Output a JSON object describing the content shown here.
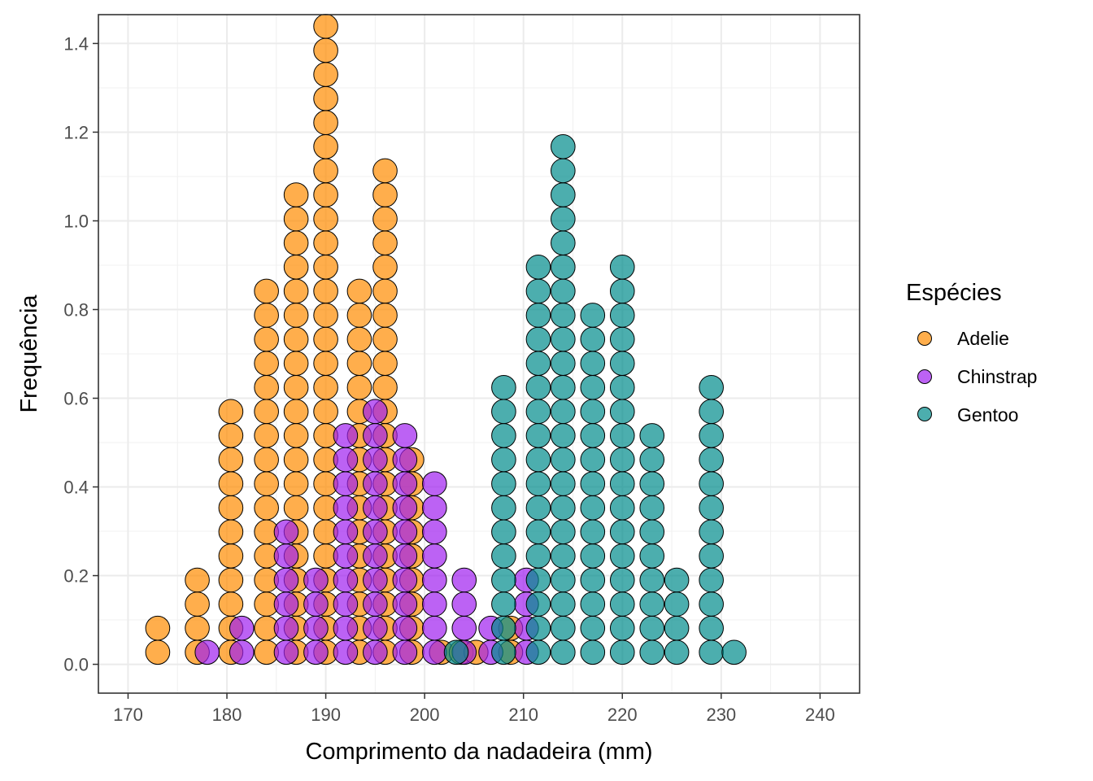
{
  "chart_data": {
    "type": "dotplot",
    "title": "",
    "xlabel": "Comprimento da nadadeira (mm)",
    "ylabel": "Frequência",
    "xlim": [
      167,
      244
    ],
    "ylim": [
      -0.065,
      1.465
    ],
    "x_ticks": [
      170,
      180,
      190,
      200,
      210,
      220,
      230,
      240
    ],
    "x_tick_labels": [
      "170",
      "180",
      "190",
      "200",
      "210",
      "220",
      "230",
      "240"
    ],
    "y_ticks": [
      0.0,
      0.2,
      0.4,
      0.6,
      0.8,
      1.0,
      1.2,
      1.4
    ],
    "y_tick_labels": [
      "0.0",
      "0.2",
      "0.4",
      "0.6",
      "0.8",
      "1.0",
      "1.2",
      "1.4"
    ],
    "grid": true,
    "legend": {
      "title": "Espécies",
      "position": "right"
    },
    "dot_step": 0.05429,
    "series": [
      {
        "name": "Adelie",
        "color": "#FF8C00",
        "stacks": [
          [
            173,
            2
          ],
          [
            177,
            4
          ],
          [
            180.4,
            11
          ],
          [
            184,
            16
          ],
          [
            187,
            20
          ],
          [
            190,
            27
          ],
          [
            193.4,
            16
          ],
          [
            196,
            21
          ],
          [
            198.7,
            9
          ],
          [
            201.7,
            1
          ],
          [
            203.7,
            1
          ],
          [
            205.2,
            1
          ],
          [
            208.7,
            2
          ]
        ]
      },
      {
        "name": "Chinstrap",
        "color": "#A020F0",
        "stacks": [
          [
            178,
            1
          ],
          [
            181.5,
            2
          ],
          [
            186,
            6
          ],
          [
            189,
            4
          ],
          [
            192,
            10
          ],
          [
            195,
            11
          ],
          [
            198,
            10
          ],
          [
            201,
            8
          ],
          [
            204,
            4
          ],
          [
            206.7,
            2
          ],
          [
            210.3,
            4
          ]
        ]
      },
      {
        "name": "Gentoo",
        "color": "#008B8B",
        "stacks": [
          [
            203.2,
            1
          ],
          [
            208,
            12
          ],
          [
            211.5,
            17
          ],
          [
            214,
            22
          ],
          [
            217,
            15
          ],
          [
            220,
            17
          ],
          [
            223,
            10
          ],
          [
            225.5,
            4
          ],
          [
            229,
            12
          ],
          [
            231.3,
            1
          ]
        ]
      }
    ]
  }
}
